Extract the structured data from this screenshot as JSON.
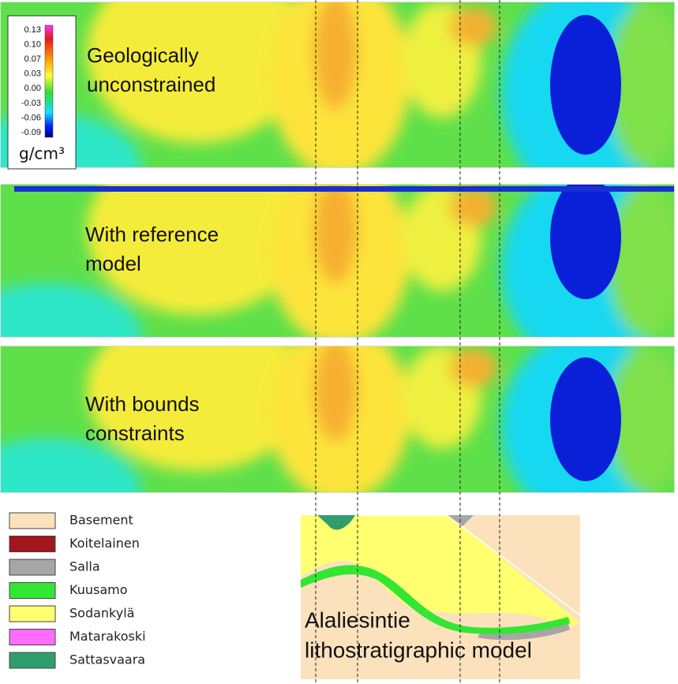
{
  "colorbar": {
    "ticks": [
      "0.13",
      "0.10",
      "0.07",
      "0.03",
      "0.00",
      "-0.03",
      "-0.06",
      "-0.09"
    ],
    "unit": "g/cm³"
  },
  "panels": [
    {
      "label": [
        "Geologically",
        "unconstrained"
      ]
    },
    {
      "label": [
        "With reference",
        "model"
      ]
    },
    {
      "label": [
        "With bounds",
        "constraints"
      ]
    }
  ],
  "legend": [
    {
      "label": "Basement",
      "color": "#fbe2bd"
    },
    {
      "label": "Koitelainen",
      "color": "#a3161c"
    },
    {
      "label": "Salla",
      "color": "#a6a6a6"
    },
    {
      "label": "Kuusamo",
      "color": "#33e633"
    },
    {
      "label": "Sodankylä",
      "color": "#ffff70"
    },
    {
      "label": "Matarakoski",
      "color": "#ff6cff"
    },
    {
      "label": "Sattasvaara",
      "color": "#2f9e6c"
    }
  ],
  "section": {
    "label": [
      "Alaliesintie",
      "lithostratigraphic model"
    ]
  }
}
